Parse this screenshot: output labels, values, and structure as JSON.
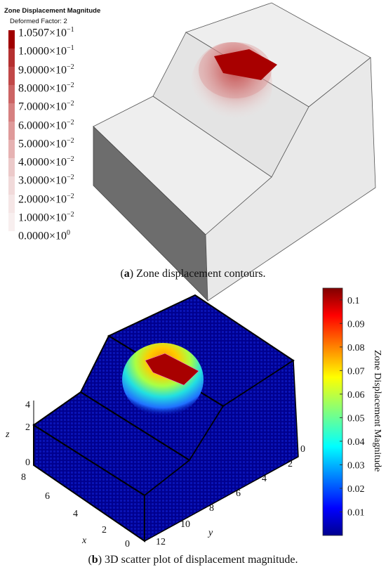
{
  "figure": {
    "caption_a": {
      "tag": "a",
      "text": "Zone displacement contours."
    },
    "caption_b": {
      "tag": "b",
      "text": "3D scatter plot of displacement magnitude."
    }
  },
  "colors": {
    "contour_max": "#a80000",
    "background_model": "#e8e8e8",
    "scatter_background": "#00008f"
  },
  "chart_data": [
    {
      "type": "contour",
      "title": "Zone Displacement Magnitude",
      "subtitle": "Deformed Factor: 2",
      "legend": {
        "placement": "top-left",
        "entries": [
          {
            "mantissa": "1.0507",
            "exponent": "−1",
            "value": 0.10507
          },
          {
            "mantissa": "1.0000",
            "exponent": "−1",
            "value": 0.1
          },
          {
            "mantissa": "9.0000",
            "exponent": "−2",
            "value": 0.09
          },
          {
            "mantissa": "8.0000",
            "exponent": "−2",
            "value": 0.08
          },
          {
            "mantissa": "7.0000",
            "exponent": "−2",
            "value": 0.07
          },
          {
            "mantissa": "6.0000",
            "exponent": "−2",
            "value": 0.06
          },
          {
            "mantissa": "5.0000",
            "exponent": "−2",
            "value": 0.05
          },
          {
            "mantissa": "4.0000",
            "exponent": "−2",
            "value": 0.04
          },
          {
            "mantissa": "3.0000",
            "exponent": "−2",
            "value": 0.03
          },
          {
            "mantissa": "2.0000",
            "exponent": "−2",
            "value": 0.02
          },
          {
            "mantissa": "1.0000",
            "exponent": "−2",
            "value": 0.01
          },
          {
            "mantissa": "0.0000",
            "exponent": "0",
            "value": 0.0
          }
        ]
      }
    },
    {
      "type": "scatter",
      "xlabel": "x",
      "ylabel": "y",
      "zlabel": "z",
      "x_ticks": [
        "0",
        "2",
        "4",
        "6",
        "8"
      ],
      "y_ticks": [
        "0",
        "2",
        "4",
        "6",
        "8",
        "10",
        "12"
      ],
      "z_ticks": [
        "0",
        "2",
        "4"
      ],
      "colorbar": {
        "label": "Zone Displacement Magnitude",
        "ticks": [
          "0.1",
          "0.09",
          "0.08",
          "0.07",
          "0.06",
          "0.05",
          "0.04",
          "0.03",
          "0.02",
          "0.01"
        ],
        "tick_values": [
          0.1,
          0.09,
          0.08,
          0.07,
          0.06,
          0.05,
          0.04,
          0.03,
          0.02,
          0.01
        ],
        "range": [
          0,
          0.105
        ],
        "colormap": "jet"
      }
    }
  ]
}
